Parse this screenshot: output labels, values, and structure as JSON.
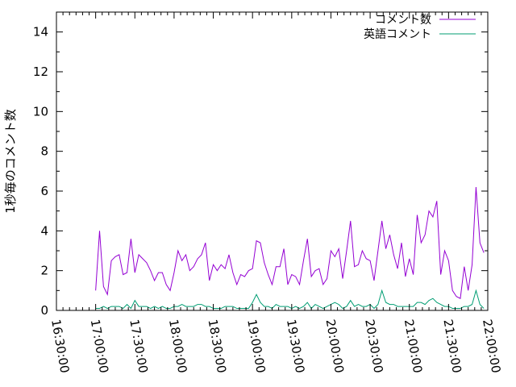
{
  "chart_data": {
    "type": "line",
    "title": "",
    "xlabel": "",
    "ylabel": "1秒毎のコメント数",
    "xlim": [
      "16:30:00",
      "22:00:00"
    ],
    "ylim": [
      0,
      15
    ],
    "x_ticks": [
      "16:30:00",
      "17:00:00",
      "17:30:00",
      "18:00:00",
      "18:30:00",
      "19:00:00",
      "19:30:00",
      "20:00:00",
      "20:30:00",
      "21:00:00",
      "21:30:00",
      "22:00:00"
    ],
    "y_ticks": [
      "0",
      "2",
      "4",
      "6",
      "8",
      "10",
      "12",
      "14"
    ],
    "legend_position": "top-right",
    "x_sample_start": "17:00:00",
    "x_sample_step_seconds": 180,
    "series": [
      {
        "name": "コメント数",
        "color": "#9400d3",
        "values": [
          1.0,
          4.0,
          1.2,
          0.8,
          2.5,
          2.7,
          2.8,
          1.8,
          1.9,
          3.6,
          1.9,
          2.8,
          2.6,
          2.4,
          2.0,
          1.5,
          1.9,
          1.9,
          1.3,
          1.0,
          1.9,
          3.0,
          2.5,
          2.8,
          2.0,
          2.2,
          2.6,
          2.8,
          3.4,
          1.5,
          2.3,
          2.0,
          2.3,
          2.1,
          2.8,
          1.9,
          1.3,
          1.8,
          1.7,
          2.0,
          2.1,
          3.5,
          3.4,
          2.4,
          1.8,
          1.3,
          2.2,
          2.2,
          3.1,
          1.3,
          1.8,
          1.7,
          1.3,
          2.5,
          3.6,
          1.7,
          2.0,
          2.1,
          1.3,
          1.6,
          3.0,
          2.7,
          3.1,
          1.6,
          3.0,
          4.5,
          2.2,
          2.3,
          3.0,
          2.6,
          2.5,
          1.5,
          3.0,
          4.5,
          3.1,
          3.8,
          2.8,
          2.1,
          3.4,
          1.7,
          2.6,
          1.8,
          4.8,
          3.4,
          3.8,
          5.0,
          4.7,
          5.5,
          1.8,
          3.0,
          2.5,
          1.0,
          0.7,
          0.6,
          2.2,
          1.0,
          2.3,
          6.2,
          3.4,
          2.9
        ]
      },
      {
        "name": "英語コメント",
        "color": "#009e73",
        "values": [
          0.1,
          0.1,
          0.2,
          0.1,
          0.2,
          0.2,
          0.2,
          0.1,
          0.3,
          0.1,
          0.5,
          0.2,
          0.2,
          0.2,
          0.1,
          0.2,
          0.1,
          0.2,
          0.1,
          0.1,
          0.2,
          0.2,
          0.3,
          0.2,
          0.2,
          0.2,
          0.3,
          0.3,
          0.2,
          0.2,
          0.1,
          0.1,
          0.1,
          0.2,
          0.2,
          0.2,
          0.1,
          0.1,
          0.1,
          0.1,
          0.4,
          0.8,
          0.4,
          0.2,
          0.2,
          0.1,
          0.3,
          0.2,
          0.2,
          0.2,
          0.1,
          0.2,
          0.1,
          0.2,
          0.4,
          0.1,
          0.3,
          0.2,
          0.1,
          0.2,
          0.3,
          0.4,
          0.3,
          0.1,
          0.2,
          0.5,
          0.2,
          0.3,
          0.2,
          0.2,
          0.3,
          0.1,
          0.3,
          1.0,
          0.4,
          0.3,
          0.3,
          0.2,
          0.2,
          0.2,
          0.2,
          0.2,
          0.4,
          0.4,
          0.3,
          0.5,
          0.6,
          0.4,
          0.3,
          0.2,
          0.2,
          0.1,
          0.1,
          0.1,
          0.2,
          0.2,
          0.3,
          1.0,
          0.3,
          0.1
        ]
      }
    ]
  }
}
